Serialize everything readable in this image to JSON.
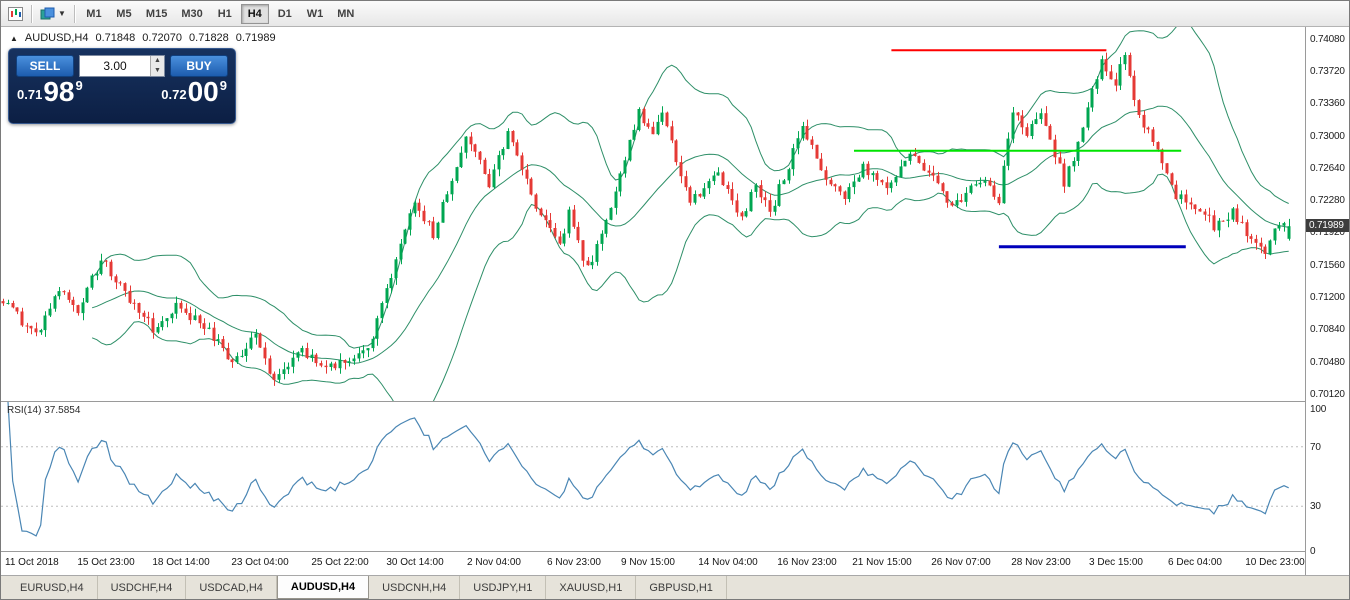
{
  "toolbar": {
    "timeframes": [
      "M1",
      "M5",
      "M15",
      "M30",
      "H1",
      "H4",
      "D1",
      "W1",
      "MN"
    ],
    "active_timeframe": "H4"
  },
  "chart": {
    "header": {
      "symbol": "AUDUSD,H4",
      "open": "0.71848",
      "high": "0.72070",
      "low": "0.71828",
      "close": "0.71989"
    },
    "trade_panel": {
      "sell_label": "SELL",
      "buy_label": "BUY",
      "volume": "3.00",
      "sell_price": {
        "prefix": "0.71",
        "big": "98",
        "sup": "9"
      },
      "buy_price": {
        "prefix": "0.72",
        "big": "00",
        "sup": "9"
      }
    },
    "price_axis": {
      "labels": [
        "0.74080",
        "0.73720",
        "0.73360",
        "0.73000",
        "0.72640",
        "0.72280",
        "0.71920",
        "0.71560",
        "0.71200",
        "0.70840",
        "0.70480",
        "0.70120"
      ],
      "current_price": "0.71989"
    }
  },
  "rsi_panel": {
    "label": "RSI(14) 37.5854",
    "levels": [
      "100",
      "70",
      "30",
      "0"
    ]
  },
  "bottom_tabs": {
    "items": [
      "EURUSD,H4",
      "USDCHF,H4",
      "USDCAD,H4",
      "AUDUSD,H4",
      "USDCNH,H4",
      "USDJPY,H1",
      "XAUUSD,H1",
      "GBPUSD,H1"
    ],
    "active": "AUDUSD,H4"
  },
  "chart_data": {
    "type": "candlestick",
    "symbol": "AUDUSD",
    "timeframe": "H4",
    "title": "AUDUSD,H4",
    "n_candles": 276,
    "last_close": 0.71989,
    "last_candle": {
      "open": 0.71848,
      "high": 0.7207,
      "low": 0.71828,
      "close": 0.71989
    },
    "price_range": {
      "min": 0.7004,
      "max": 0.7421
    },
    "noise": 0.0006,
    "wick": 0.0008,
    "noise_seed": 20181210,
    "close_waypoints": [
      [
        0,
        0.7115
      ],
      [
        7,
        0.7075
      ],
      [
        12,
        0.7125
      ],
      [
        16,
        0.7108
      ],
      [
        21,
        0.716
      ],
      [
        24,
        0.714
      ],
      [
        32,
        0.7085
      ],
      [
        37,
        0.7112
      ],
      [
        44,
        0.7082
      ],
      [
        49,
        0.7045
      ],
      [
        54,
        0.7078
      ],
      [
        58,
        0.7025
      ],
      [
        64,
        0.7058
      ],
      [
        70,
        0.7042
      ],
      [
        78,
        0.7058
      ],
      [
        88,
        0.7225
      ],
      [
        92,
        0.719
      ],
      [
        99,
        0.73
      ],
      [
        104,
        0.7248
      ],
      [
        108,
        0.7305
      ],
      [
        115,
        0.721
      ],
      [
        119,
        0.7178
      ],
      [
        121,
        0.7212
      ],
      [
        125,
        0.715
      ],
      [
        131,
        0.724
      ],
      [
        136,
        0.733
      ],
      [
        139,
        0.7298
      ],
      [
        141,
        0.7328
      ],
      [
        147,
        0.7224
      ],
      [
        153,
        0.7258
      ],
      [
        158,
        0.7208
      ],
      [
        161,
        0.7244
      ],
      [
        164,
        0.7214
      ],
      [
        171,
        0.7308
      ],
      [
        176,
        0.725
      ],
      [
        180,
        0.723
      ],
      [
        184,
        0.7264
      ],
      [
        189,
        0.7238
      ],
      [
        194,
        0.728
      ],
      [
        199,
        0.725
      ],
      [
        203,
        0.722
      ],
      [
        209,
        0.7252
      ],
      [
        213,
        0.723
      ],
      [
        216,
        0.733
      ],
      [
        219,
        0.7298
      ],
      [
        222,
        0.733
      ],
      [
        227,
        0.7248
      ],
      [
        230,
        0.729
      ],
      [
        235,
        0.7386
      ],
      [
        238,
        0.736
      ],
      [
        240,
        0.7392
      ],
      [
        243,
        0.732
      ],
      [
        247,
        0.7286
      ],
      [
        251,
        0.7232
      ],
      [
        255,
        0.7224
      ],
      [
        259,
        0.72
      ],
      [
        263,
        0.7216
      ],
      [
        267,
        0.718
      ],
      [
        270,
        0.7168
      ],
      [
        273,
        0.7202
      ],
      [
        275,
        0.71989
      ]
    ],
    "bollinger": {
      "period": 20,
      "deviation": 2,
      "color": "#2e8f68"
    },
    "colors": {
      "up": "#00a651",
      "down": "#e53935",
      "rsi": "#4a86b4",
      "rsi_level": "#bdbdbd",
      "badge_bg": "#3d3d3d",
      "badge_fg": "#ffffff"
    },
    "hlines": [
      {
        "price": 0.7395,
        "i1": 190,
        "i2": 236,
        "color": "#ff0000",
        "width": 2
      },
      {
        "price": 0.7283,
        "i1": 182,
        "i2": 252,
        "color": "#00e400",
        "width": 2
      },
      {
        "price": 0.7176,
        "i1": 213,
        "i2": 253,
        "color": "#0000bb",
        "width": 3
      }
    ],
    "rsi": {
      "period": 14,
      "value": 37.5854,
      "levels": [
        100,
        70,
        30,
        0
      ],
      "range": [
        0,
        100
      ]
    },
    "x_labels": [
      {
        "i": 5,
        "text": "11 Oct 2018"
      },
      {
        "i": 22,
        "text": "15 Oct 23:00"
      },
      {
        "i": 38,
        "text": "18 Oct 14:00"
      },
      {
        "i": 55,
        "text": "23 Oct 04:00"
      },
      {
        "i": 72,
        "text": "25 Oct 22:00"
      },
      {
        "i": 88,
        "text": "30 Oct 14:00"
      },
      {
        "i": 105,
        "text": "2 Nov 04:00"
      },
      {
        "i": 122,
        "text": "6 Nov 23:00"
      },
      {
        "i": 138,
        "text": "9 Nov 15:00"
      },
      {
        "i": 155,
        "text": "14 Nov 04:00"
      },
      {
        "i": 172,
        "text": "16 Nov 23:00"
      },
      {
        "i": 188,
        "text": "21 Nov 15:00"
      },
      {
        "i": 205,
        "text": "26 Nov 07:00"
      },
      {
        "i": 222,
        "text": "28 Nov 23:00"
      },
      {
        "i": 238,
        "text": "3 Dec 15:00"
      },
      {
        "i": 255,
        "text": "6 Dec 04:00"
      },
      {
        "i": 272,
        "text": "10 Dec 23:00"
      }
    ]
  }
}
